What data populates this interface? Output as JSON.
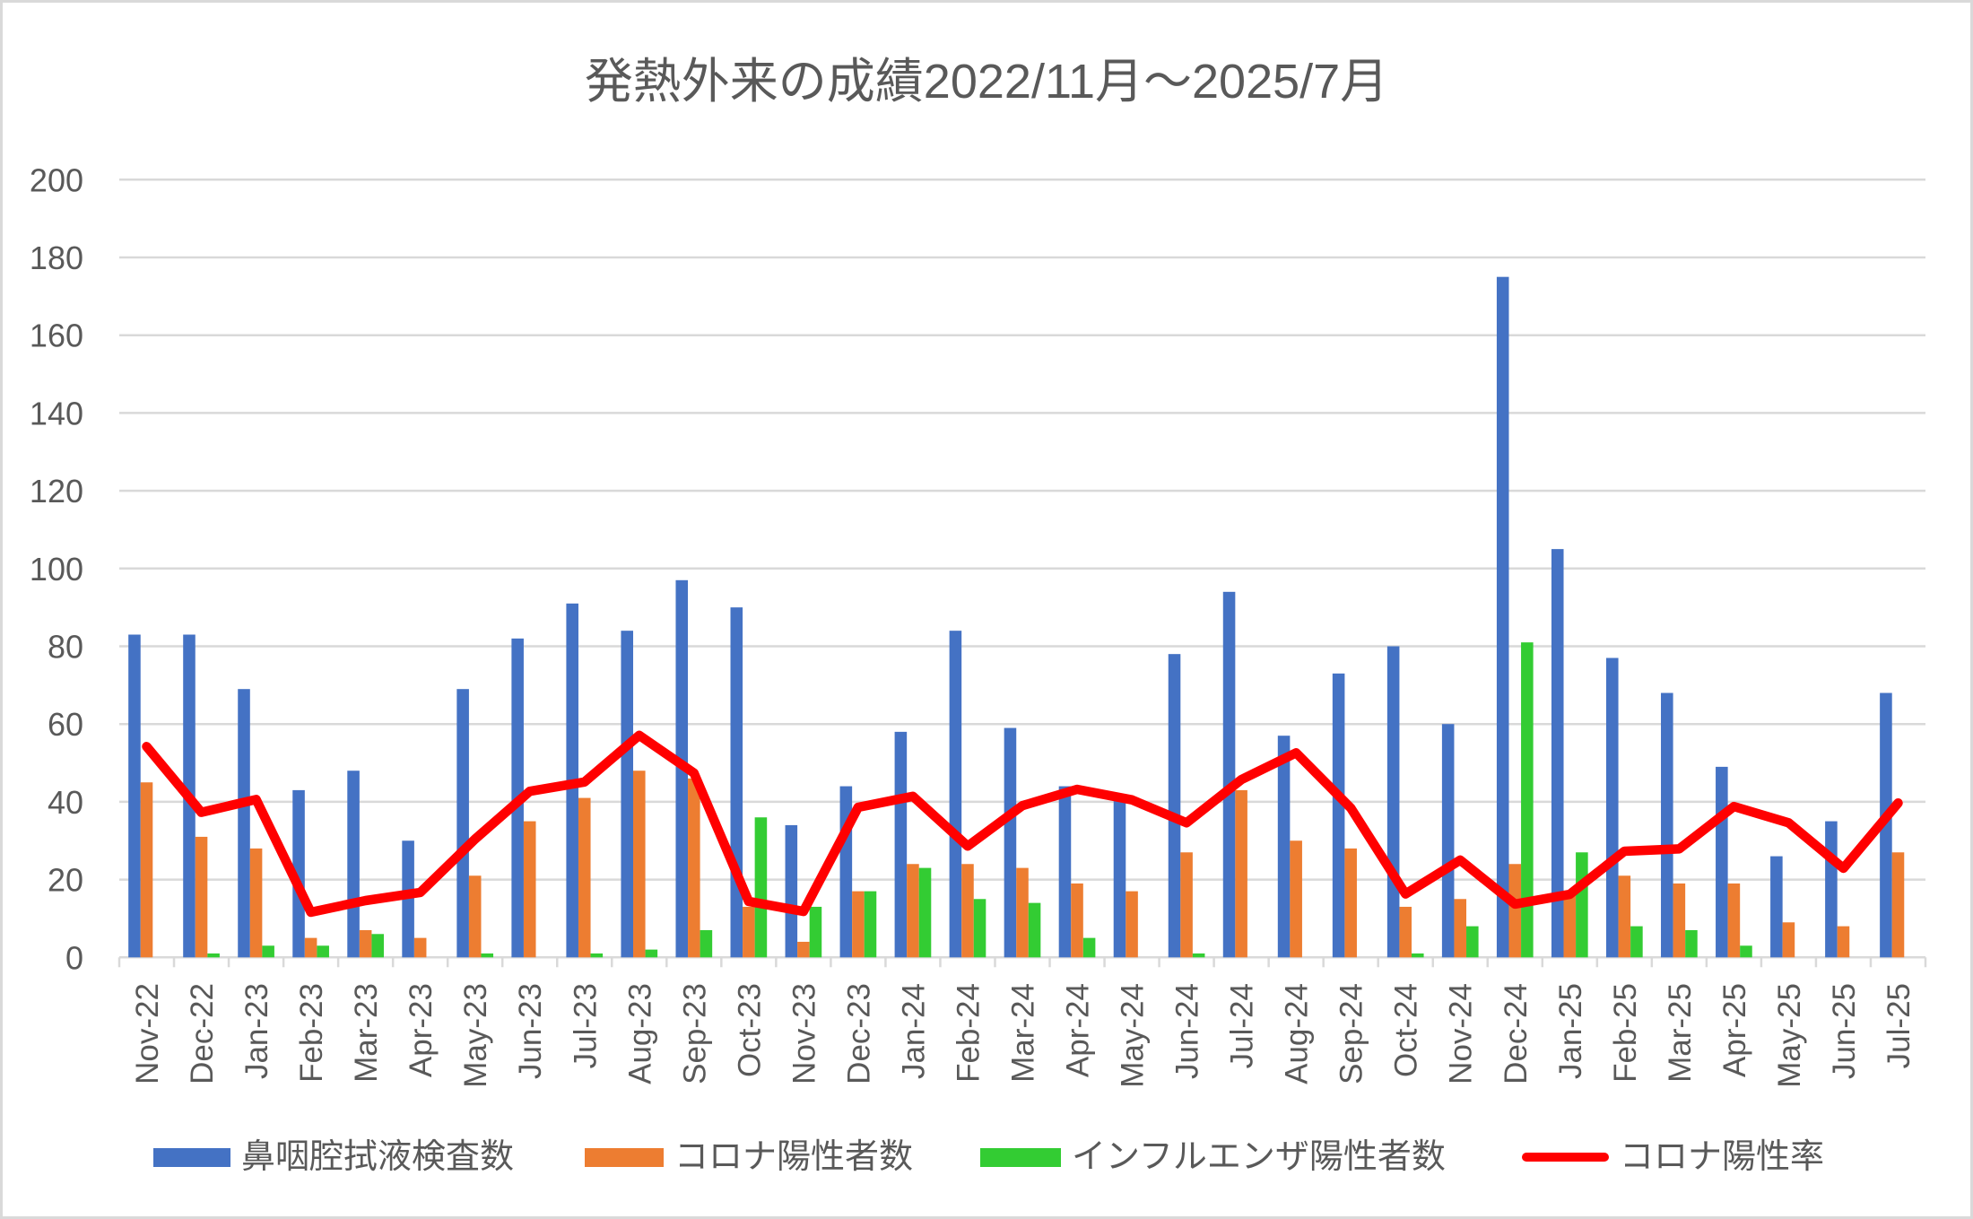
{
  "chart_data": {
    "type": "bar",
    "title": "発熱外来の成績2022/11月～2025/7月",
    "xlabel": "",
    "ylabel": "",
    "ylim": [
      0,
      200
    ],
    "y_ticks": [
      0,
      20,
      40,
      60,
      80,
      100,
      120,
      140,
      160,
      180,
      200
    ],
    "grid": true,
    "legend_position": "bottom",
    "categories": [
      "Nov-22",
      "Dec-22",
      "Jan-23",
      "Feb-23",
      "Mar-23",
      "Apr-23",
      "May-23",
      "Jun-23",
      "Jul-23",
      "Aug-23",
      "Sep-23",
      "Oct-23",
      "Nov-23",
      "Dec-23",
      "Jan-24",
      "Feb-24",
      "Mar-24",
      "Apr-24",
      "May-24",
      "Jun-24",
      "Jul-24",
      "Aug-24",
      "Sep-24",
      "Oct-24",
      "Nov-24",
      "Dec-24",
      "Jan-25",
      "Feb-25",
      "Mar-25",
      "Apr-25",
      "May-25",
      "Jun-25",
      "Jul-25"
    ],
    "series": [
      {
        "name": "鼻咽腔拭液検査数",
        "type": "bar",
        "color": "#4472C4",
        "values": [
          83,
          83,
          69,
          43,
          48,
          30,
          69,
          82,
          91,
          84,
          97,
          90,
          34,
          44,
          58,
          84,
          59,
          44,
          42,
          78,
          94,
          57,
          73,
          80,
          60,
          175,
          105,
          77,
          68,
          49,
          26,
          35,
          68
        ]
      },
      {
        "name": "コロナ陽性者数",
        "type": "bar",
        "color": "#ED7D31",
        "values": [
          45,
          31,
          28,
          5,
          7,
          5,
          21,
          35,
          41,
          48,
          46,
          13,
          4,
          17,
          24,
          24,
          23,
          19,
          17,
          27,
          43,
          30,
          28,
          13,
          15,
          24,
          17,
          21,
          19,
          19,
          9,
          8,
          27
        ]
      },
      {
        "name": "インフルエンザ陽性者数",
        "type": "bar",
        "color": "#33CC33",
        "values": [
          0,
          1,
          3,
          3,
          6,
          0,
          1,
          0,
          1,
          2,
          7,
          36,
          13,
          17,
          23,
          15,
          14,
          5,
          0,
          1,
          0,
          0,
          0,
          1,
          8,
          81,
          27,
          8,
          7,
          3,
          0,
          0,
          0
        ]
      },
      {
        "name": "コロナ陽性率",
        "type": "line",
        "unit": "%",
        "color": "#FF0000",
        "values": [
          54.2,
          37.3,
          40.6,
          11.6,
          14.6,
          16.7,
          30.4,
          42.7,
          45.1,
          57.1,
          47.4,
          14.4,
          11.8,
          38.6,
          41.4,
          28.6,
          39.0,
          43.2,
          40.5,
          34.6,
          45.7,
          52.6,
          38.4,
          16.3,
          25.0,
          13.7,
          16.2,
          27.3,
          27.9,
          38.8,
          34.6,
          22.9,
          39.7
        ]
      }
    ]
  }
}
